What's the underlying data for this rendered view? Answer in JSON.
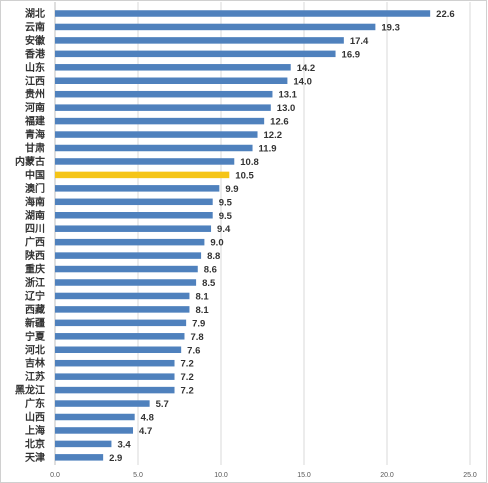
{
  "chart_data": {
    "type": "bar",
    "orientation": "horizontal",
    "categories": [
      "湖北",
      "云南",
      "安徽",
      "香港",
      "山东",
      "江西",
      "贵州",
      "河南",
      "福建",
      "青海",
      "甘肃",
      "内蒙古",
      "中国",
      "澳门",
      "海南",
      "湖南",
      "四川",
      "广西",
      "陕西",
      "重庆",
      "浙江",
      "辽宁",
      "西藏",
      "新疆",
      "宁夏",
      "河北",
      "吉林",
      "江苏",
      "黑龙江",
      "广东",
      "山西",
      "上海",
      "北京",
      "天津"
    ],
    "values": [
      22.6,
      19.3,
      17.4,
      16.9,
      14.2,
      14.0,
      13.1,
      13.0,
      12.6,
      12.2,
      11.9,
      10.8,
      10.5,
      9.9,
      9.5,
      9.5,
      9.4,
      9.0,
      8.8,
      8.6,
      8.5,
      8.1,
      8.1,
      7.9,
      7.8,
      7.6,
      7.2,
      7.2,
      7.2,
      5.7,
      4.8,
      4.7,
      3.4,
      2.9
    ],
    "value_labels": [
      "22.6",
      "19.3",
      "17.4",
      "16.9",
      "14.2",
      "14.0",
      "13.1",
      "13.0",
      "12.6",
      "12.2",
      "11.9",
      "10.8",
      "10.5",
      "9.9",
      "9.5",
      "9.5",
      "9.4",
      "9.0",
      "8.8",
      "8.6",
      "8.5",
      "8.1",
      "8.1",
      "7.9",
      "7.8",
      "7.6",
      "7.2",
      "7.2",
      "7.2",
      "5.7",
      "4.8",
      "4.7",
      "3.4",
      "2.9"
    ],
    "highlight_category": "中国",
    "xlim": [
      0,
      25
    ],
    "x_ticks": [
      "0.0",
      "5.0",
      "10.0",
      "15.0",
      "20.0",
      "25.0"
    ],
    "grid": true,
    "legend": "none",
    "colors": {
      "bar": "#4F81BD",
      "highlight": "#F5C518",
      "grid": "#D9D9D9"
    }
  }
}
